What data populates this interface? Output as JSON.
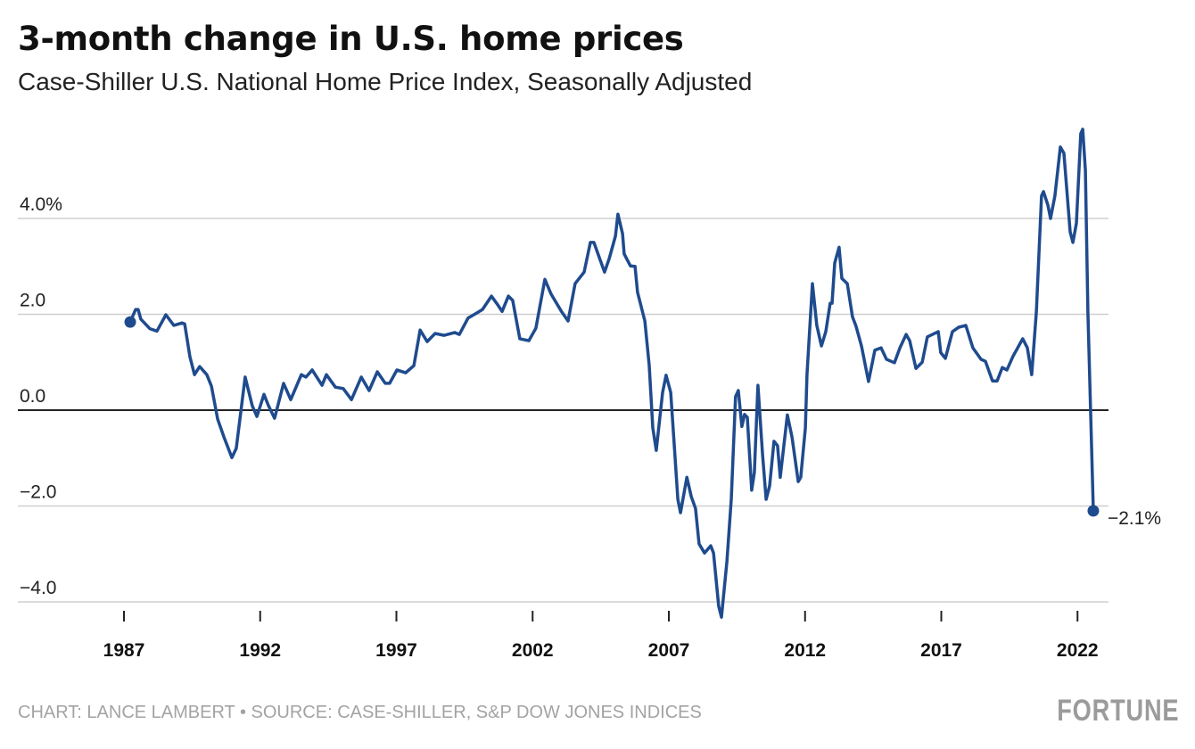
{
  "chart_data": {
    "type": "line",
    "title": "3-month change in U.S. home prices",
    "subtitle": "Case-Shiller U.S. National Home Price Index, Seasonally Adjusted",
    "xlabel": "",
    "ylabel": "",
    "xlim": [
      1987,
      2023
    ],
    "ylim": [
      -4.4,
      6.2
    ],
    "y_ticks": [
      {
        "value": 4,
        "label": "4.0%"
      },
      {
        "value": 2,
        "label": "2.0"
      },
      {
        "value": 0,
        "label": "0.0"
      },
      {
        "value": -2,
        "label": "-2.0"
      },
      {
        "value": -4,
        "label": "-4.0"
      }
    ],
    "x_ticks": [
      {
        "value": 1987,
        "label": "1987"
      },
      {
        "value": 1992,
        "label": "1992"
      },
      {
        "value": 1997,
        "label": "1997"
      },
      {
        "value": 2002,
        "label": "2002"
      },
      {
        "value": 2007,
        "label": "2007"
      },
      {
        "value": 2012,
        "label": "2012"
      },
      {
        "value": 2017,
        "label": "2017"
      },
      {
        "value": 2022,
        "label": "2022"
      }
    ],
    "grid": true,
    "line_color": "#1f4b8e",
    "end_label": "−2.1%",
    "series": [
      {
        "name": "3-month change",
        "points": [
          [
            1987.23,
            1.84
          ],
          [
            1987.43,
            2.1
          ],
          [
            1987.52,
            2.1
          ],
          [
            1987.62,
            1.9
          ],
          [
            1987.95,
            1.7
          ],
          [
            1988.21,
            1.65
          ],
          [
            1988.54,
            1.99
          ],
          [
            1988.83,
            1.77
          ],
          [
            1989.13,
            1.82
          ],
          [
            1989.23,
            1.8
          ],
          [
            1989.42,
            1.12
          ],
          [
            1989.59,
            0.74
          ],
          [
            1989.78,
            0.91
          ],
          [
            1990.04,
            0.74
          ],
          [
            1990.21,
            0.5
          ],
          [
            1990.44,
            -0.19
          ],
          [
            1990.67,
            -0.56
          ],
          [
            1990.96,
            -0.99
          ],
          [
            1991.12,
            -0.8
          ],
          [
            1991.45,
            0.69
          ],
          [
            1991.71,
            0.09
          ],
          [
            1991.88,
            -0.13
          ],
          [
            1992.14,
            0.33
          ],
          [
            1992.3,
            0.1
          ],
          [
            1992.53,
            -0.17
          ],
          [
            1992.86,
            0.56
          ],
          [
            1993.12,
            0.22
          ],
          [
            1993.51,
            0.74
          ],
          [
            1993.68,
            0.69
          ],
          [
            1993.91,
            0.84
          ],
          [
            1994.27,
            0.52
          ],
          [
            1994.43,
            0.74
          ],
          [
            1994.76,
            0.48
          ],
          [
            1995.05,
            0.45
          ],
          [
            1995.35,
            0.22
          ],
          [
            1995.71,
            0.69
          ],
          [
            1996.0,
            0.41
          ],
          [
            1996.3,
            0.8
          ],
          [
            1996.59,
            0.56
          ],
          [
            1996.75,
            0.56
          ],
          [
            1997.02,
            0.84
          ],
          [
            1997.34,
            0.78
          ],
          [
            1997.64,
            0.93
          ],
          [
            1997.87,
            1.67
          ],
          [
            1998.13,
            1.43
          ],
          [
            1998.42,
            1.6
          ],
          [
            1998.75,
            1.56
          ],
          [
            1999.14,
            1.62
          ],
          [
            1999.31,
            1.58
          ],
          [
            1999.63,
            1.92
          ],
          [
            1999.96,
            2.03
          ],
          [
            2000.16,
            2.1
          ],
          [
            2000.49,
            2.38
          ],
          [
            2000.72,
            2.2
          ],
          [
            2000.88,
            2.06
          ],
          [
            2001.11,
            2.38
          ],
          [
            2001.27,
            2.29
          ],
          [
            2001.53,
            1.49
          ],
          [
            2001.86,
            1.45
          ],
          [
            2002.12,
            1.71
          ],
          [
            2002.45,
            2.73
          ],
          [
            2002.68,
            2.42
          ],
          [
            2003.07,
            2.05
          ],
          [
            2003.3,
            1.86
          ],
          [
            2003.56,
            2.64
          ],
          [
            2003.89,
            2.88
          ],
          [
            2004.12,
            3.5
          ],
          [
            2004.25,
            3.5
          ],
          [
            2004.38,
            3.29
          ],
          [
            2004.64,
            2.88
          ],
          [
            2004.81,
            3.16
          ],
          [
            2005.04,
            3.63
          ],
          [
            2005.13,
            4.09
          ],
          [
            2005.3,
            3.68
          ],
          [
            2005.36,
            3.26
          ],
          [
            2005.59,
            3.01
          ],
          [
            2005.76,
            3.0
          ],
          [
            2005.85,
            2.46
          ],
          [
            2006.12,
            1.86
          ],
          [
            2006.28,
            0.93
          ],
          [
            2006.41,
            -0.37
          ],
          [
            2006.54,
            -0.84
          ],
          [
            2006.77,
            0.37
          ],
          [
            2006.9,
            0.73
          ],
          [
            2007.07,
            0.37
          ],
          [
            2007.2,
            -0.74
          ],
          [
            2007.33,
            -1.86
          ],
          [
            2007.43,
            -2.14
          ],
          [
            2007.66,
            -1.4
          ],
          [
            2007.82,
            -1.8
          ],
          [
            2007.98,
            -2.05
          ],
          [
            2008.11,
            -2.79
          ],
          [
            2008.31,
            -2.98
          ],
          [
            2008.54,
            -2.83
          ],
          [
            2008.64,
            -2.98
          ],
          [
            2008.83,
            -4.09
          ],
          [
            2008.93,
            -4.32
          ],
          [
            2009.13,
            -3.16
          ],
          [
            2009.29,
            -1.86
          ],
          [
            2009.45,
            0.28
          ],
          [
            2009.55,
            0.41
          ],
          [
            2009.68,
            -0.34
          ],
          [
            2009.78,
            -0.09
          ],
          [
            2009.88,
            -0.15
          ],
          [
            2010.04,
            -1.67
          ],
          [
            2010.14,
            -1.3
          ],
          [
            2010.27,
            0.52
          ],
          [
            2010.44,
            -0.93
          ],
          [
            2010.57,
            -1.86
          ],
          [
            2010.7,
            -1.58
          ],
          [
            2010.86,
            -0.65
          ],
          [
            2010.99,
            -0.74
          ],
          [
            2011.09,
            -1.4
          ],
          [
            2011.35,
            -0.1
          ],
          [
            2011.52,
            -0.56
          ],
          [
            2011.75,
            -1.49
          ],
          [
            2011.84,
            -1.4
          ],
          [
            2012.01,
            -0.37
          ],
          [
            2012.07,
            0.74
          ],
          [
            2012.27,
            2.64
          ],
          [
            2012.43,
            1.77
          ],
          [
            2012.6,
            1.34
          ],
          [
            2012.76,
            1.64
          ],
          [
            2012.92,
            2.23
          ],
          [
            2012.99,
            2.23
          ],
          [
            2013.09,
            3.07
          ],
          [
            2013.25,
            3.4
          ],
          [
            2013.35,
            2.75
          ],
          [
            2013.55,
            2.64
          ],
          [
            2013.74,
            1.95
          ],
          [
            2013.87,
            1.75
          ],
          [
            2014.07,
            1.34
          ],
          [
            2014.33,
            0.6
          ],
          [
            2014.56,
            1.25
          ],
          [
            2014.79,
            1.3
          ],
          [
            2014.99,
            1.06
          ],
          [
            2015.28,
            0.99
          ],
          [
            2015.48,
            1.3
          ],
          [
            2015.71,
            1.58
          ],
          [
            2015.84,
            1.45
          ],
          [
            2016.07,
            0.87
          ],
          [
            2016.3,
            1.0
          ],
          [
            2016.49,
            1.53
          ],
          [
            2016.89,
            1.64
          ],
          [
            2016.98,
            1.2
          ],
          [
            2017.15,
            1.08
          ],
          [
            2017.41,
            1.64
          ],
          [
            2017.64,
            1.73
          ],
          [
            2017.9,
            1.77
          ],
          [
            2018.16,
            1.3
          ],
          [
            2018.46,
            1.06
          ],
          [
            2018.62,
            1.02
          ],
          [
            2018.88,
            0.61
          ],
          [
            2019.05,
            0.61
          ],
          [
            2019.24,
            0.89
          ],
          [
            2019.41,
            0.84
          ],
          [
            2019.63,
            1.12
          ],
          [
            2019.99,
            1.49
          ],
          [
            2020.16,
            1.3
          ],
          [
            2020.32,
            0.74
          ],
          [
            2020.49,
            2.05
          ],
          [
            2020.68,
            4.47
          ],
          [
            2020.75,
            4.56
          ],
          [
            2020.91,
            4.28
          ],
          [
            2021.01,
            4.0
          ],
          [
            2021.17,
            4.47
          ],
          [
            2021.37,
            5.49
          ],
          [
            2021.5,
            5.36
          ],
          [
            2021.73,
            3.72
          ],
          [
            2021.83,
            3.5
          ],
          [
            2021.96,
            3.9
          ],
          [
            2022.12,
            5.77
          ],
          [
            2022.19,
            5.86
          ],
          [
            2022.29,
            5.0
          ],
          [
            2022.38,
            2.05
          ],
          [
            2022.48,
            0.0
          ],
          [
            2022.58,
            -2.1
          ]
        ]
      }
    ]
  },
  "footer": {
    "credit": "CHART: LANCE LAMBERT • SOURCE: CASE-SHILLER, S&P DOW JONES INDICES",
    "logo": "FORTUNE"
  }
}
